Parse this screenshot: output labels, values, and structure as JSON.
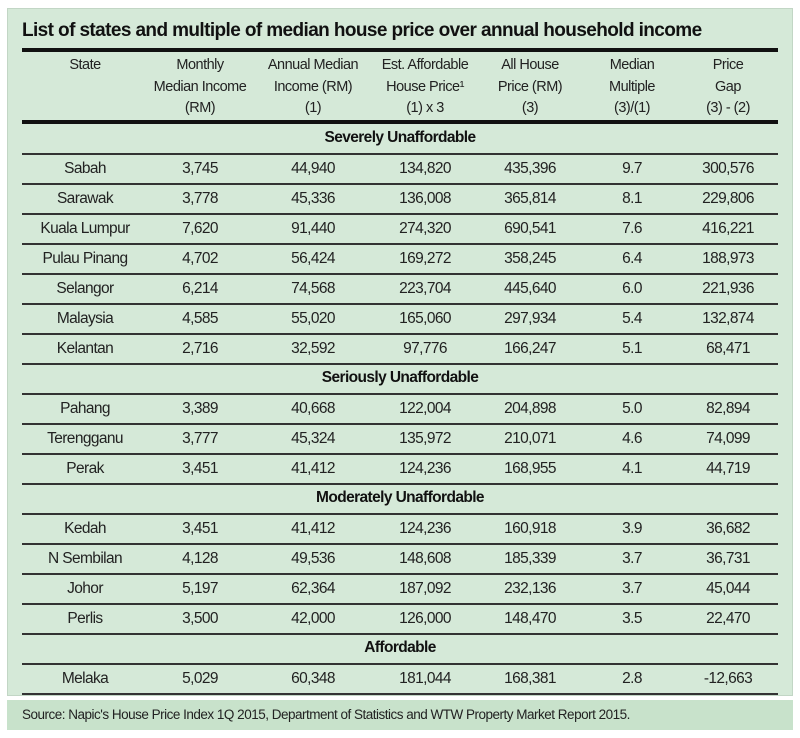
{
  "title": "List of states and multiple of median house price over annual household income",
  "headers": [
    [
      "State"
    ],
    [
      "Monthly",
      "Median Income",
      "(RM)"
    ],
    [
      "Annual Median",
      "Income (RM)",
      "(1)"
    ],
    [
      "Est. Affordable",
      "House Price¹",
      "(1) x 3"
    ],
    [
      "All House",
      "Price (RM)",
      "(3)"
    ],
    [
      "Median",
      "Multiple",
      "(3)/(1)"
    ],
    [
      "Price",
      "Gap",
      "(3) - (2)"
    ]
  ],
  "sections": [
    {
      "name": "Severely Unaffordable",
      "rows": [
        [
          "Sabah",
          "3,745",
          "44,940",
          "134,820",
          "435,396",
          "9.7",
          "300,576"
        ],
        [
          "Sarawak",
          "3,778",
          "45,336",
          "136,008",
          "365,814",
          "8.1",
          "229,806"
        ],
        [
          "Kuala Lumpur",
          "7,620",
          "91,440",
          "274,320",
          "690,541",
          "7.6",
          "416,221"
        ],
        [
          "Pulau Pinang",
          "4,702",
          "56,424",
          "169,272",
          "358,245",
          "6.4",
          "188,973"
        ],
        [
          "Selangor",
          "6,214",
          "74,568",
          "223,704",
          "445,640",
          "6.0",
          "221,936"
        ],
        [
          "Malaysia",
          "4,585",
          "55,020",
          "165,060",
          "297,934",
          "5.4",
          "132,874"
        ],
        [
          "Kelantan",
          "2,716",
          "32,592",
          "97,776",
          "166,247",
          "5.1",
          "68,471"
        ]
      ]
    },
    {
      "name": "Seriously Unaffordable",
      "rows": [
        [
          "Pahang",
          "3,389",
          "40,668",
          "122,004",
          "204,898",
          "5.0",
          "82,894"
        ],
        [
          "Terengganu",
          "3,777",
          "45,324",
          "135,972",
          "210,071",
          "4.6",
          "74,099"
        ],
        [
          "Perak",
          "3,451",
          "41,412",
          "124,236",
          "168,955",
          "4.1",
          "44,719"
        ]
      ]
    },
    {
      "name": "Moderately Unaffordable",
      "rows": [
        [
          "Kedah",
          "3,451",
          "41,412",
          "124,236",
          "160,918",
          "3.9",
          "36,682"
        ],
        [
          "N Sembilan",
          "4,128",
          "49,536",
          "148,608",
          "185,339",
          "3.7",
          "36,731"
        ],
        [
          "Johor",
          "5,197",
          "62,364",
          "187,092",
          "232,136",
          "3.7",
          "45,044"
        ],
        [
          "Perlis",
          "3,500",
          "42,000",
          "126,000",
          "148,470",
          "3.5",
          "22,470"
        ]
      ]
    },
    {
      "name": "Affordable",
      "rows": [
        [
          "Melaka",
          "5,029",
          "60,348",
          "181,044",
          "168,381",
          "2.8",
          "-12,663"
        ]
      ]
    }
  ],
  "source": "Source: Napic's House Price Index 1Q 2015, Department of Statistics and WTW Property Market Report 2015."
}
